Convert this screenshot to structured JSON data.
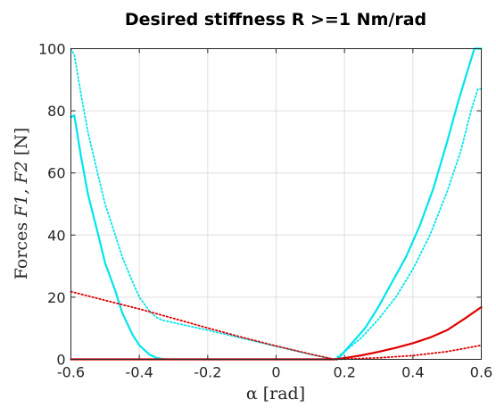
{
  "chart_data": {
    "type": "line",
    "title": "Desired stiffness R >=1 Nm/rad",
    "xlabel": "α [rad]",
    "ylabel_text": "Forces ",
    "ylabel_math": "F1, F2",
    "ylabel_unit": " [N]",
    "xlim": [
      -0.6,
      0.6
    ],
    "ylim": [
      0,
      100
    ],
    "xticks": [
      -0.6,
      -0.4,
      -0.2,
      0,
      0.2,
      0.4,
      0.6
    ],
    "xtick_labels": [
      "-0.6",
      "-0.4",
      "-0.2",
      "0",
      "0.2",
      "0.4",
      "0.6"
    ],
    "yticks": [
      0,
      20,
      40,
      60,
      80,
      100
    ],
    "ytick_labels": [
      "0",
      "20",
      "40",
      "60",
      "80",
      "100"
    ],
    "grid": true,
    "colors": {
      "cyan": "#00e5ee",
      "red": "#e00000"
    },
    "series": [
      {
        "color": "#00e5ee",
        "style": "solid",
        "x": [
          -0.6,
          -0.59,
          -0.57,
          -0.55,
          -0.52,
          -0.5,
          -0.47,
          -0.45,
          -0.42,
          -0.4,
          -0.37,
          -0.35,
          -0.33,
          -0.32,
          0.18,
          0.22,
          0.26,
          0.3,
          0.34,
          0.38,
          0.42,
          0.46,
          0.5,
          0.53,
          0.56,
          0.58,
          0.6
        ],
        "y": [
          78,
          78.5,
          65,
          53,
          40,
          31,
          22,
          15,
          8,
          4.5,
          1.5,
          0.5,
          0.1,
          0,
          0,
          5,
          10,
          17,
          25,
          33,
          43,
          55,
          70,
          82,
          93,
          100,
          100
        ]
      },
      {
        "color": "#00e5ee",
        "style": "dotted",
        "x": [
          -0.6,
          -0.59,
          -0.57,
          -0.55,
          -0.52,
          -0.5,
          -0.47,
          -0.45,
          -0.42,
          -0.4,
          -0.37,
          -0.35,
          -0.33,
          -0.32,
          -0.3,
          -0.2,
          -0.1,
          0,
          0.1,
          0.17,
          0.2,
          0.25,
          0.3,
          0.35,
          0.4,
          0.45,
          0.5,
          0.54,
          0.57,
          0.59,
          0.6
        ],
        "y": [
          100,
          98,
          85,
          73,
          59,
          50,
          40,
          33,
          25,
          20,
          15.5,
          13.5,
          12.5,
          12.3,
          11.8,
          9.4,
          6.8,
          4.2,
          1.6,
          0,
          2.5,
          7,
          13,
          20,
          29,
          40,
          54,
          67,
          80,
          87,
          87
        ]
      },
      {
        "color": "#e00000",
        "style": "solid",
        "x": [
          -0.6,
          0.17,
          0.2,
          0.25,
          0.3,
          0.35,
          0.4,
          0.45,
          0.5,
          0.55,
          0.6
        ],
        "y": [
          0,
          0,
          0.4,
          1.3,
          2.4,
          3.7,
          5.2,
          7,
          9.4,
          13,
          16.8
        ]
      },
      {
        "color": "#e00000",
        "style": "dotted",
        "x": [
          -0.6,
          -0.5,
          -0.4,
          -0.3,
          -0.2,
          -0.1,
          0,
          0.1,
          0.17,
          0.2,
          0.3,
          0.4,
          0.5,
          0.6
        ],
        "y": [
          21.8,
          19,
          16.2,
          13.2,
          10.1,
          7.1,
          4.3,
          1.7,
          0,
          0.1,
          0.5,
          1.2,
          2.5,
          4.5
        ]
      }
    ]
  }
}
